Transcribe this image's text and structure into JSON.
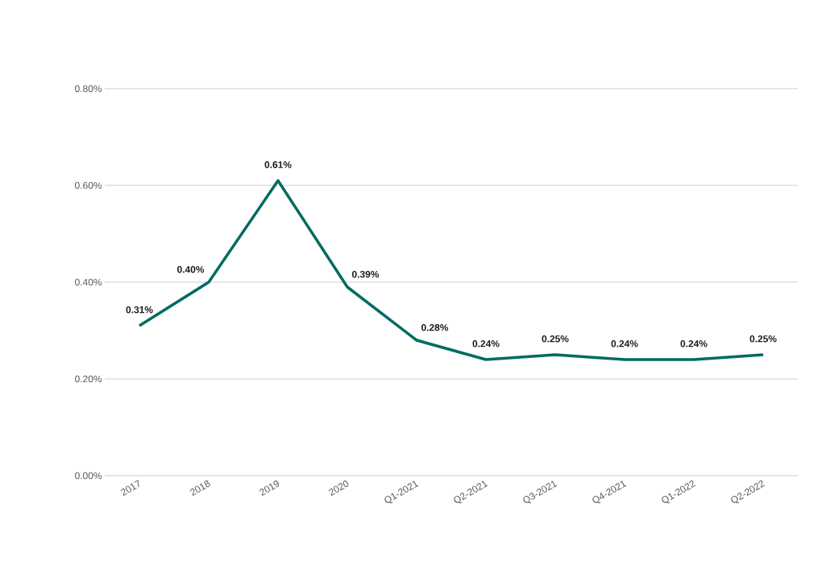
{
  "chart_data": {
    "type": "line",
    "categories": [
      "2017",
      "2018",
      "2019",
      "2020",
      "Q1-2021",
      "Q2-2021",
      "Q3-2021",
      "Q4-2021",
      "Q1-2022",
      "Q2-2022"
    ],
    "series": [
      {
        "color": "#006b61",
        "values": [
          0.31,
          0.4,
          0.61,
          0.39,
          0.28,
          0.24,
          0.25,
          0.24,
          0.24,
          0.25
        ],
        "value_labels": [
          "0.31%",
          "0.40%",
          "0.61%",
          "0.39%",
          "0.28%",
          "0.24%",
          "0.25%",
          "0.24%",
          "0.24%",
          "0.25%"
        ]
      }
    ],
    "ylim": [
      0,
      0.8
    ],
    "yticks": [
      {
        "value": 0,
        "label": "0.00%"
      },
      {
        "value": 0.2,
        "label": "0.20%"
      },
      {
        "value": 0.4,
        "label": "0.40%"
      },
      {
        "value": 0.6,
        "label": "0.60%"
      },
      {
        "value": 0.8,
        "label": "0.80%"
      }
    ],
    "grid": "y",
    "line_style": "solid",
    "marker": "none"
  }
}
